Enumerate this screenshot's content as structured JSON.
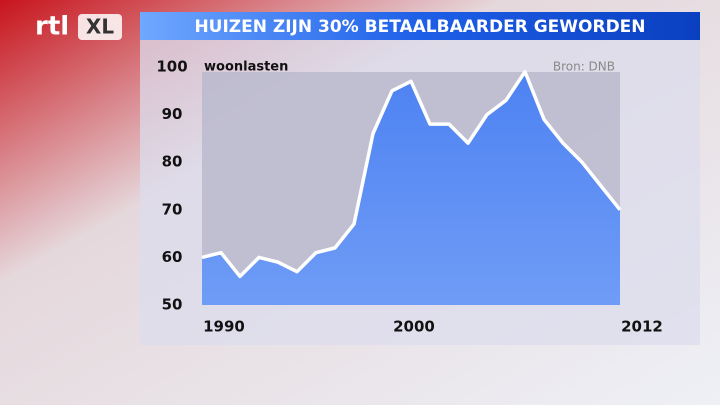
{
  "logo": {
    "left": "rtl",
    "right": "XL"
  },
  "chart_data": {
    "type": "area",
    "title": "HUIZEN ZIJN 30% BETAALBAARDER GEWORDEN",
    "y_label": "woonlasten",
    "source": "Bron: DNB",
    "x": [
      1990,
      1991,
      1992,
      1993,
      1994,
      1995,
      1996,
      1997,
      1998,
      1999,
      2000,
      2001,
      2002,
      2003,
      2004,
      2005,
      2006,
      2007,
      2008,
      2009,
      2010,
      2011,
      2012
    ],
    "values": [
      60,
      61,
      56,
      60,
      59,
      57,
      61,
      62,
      67,
      86,
      95,
      97,
      88,
      88,
      84,
      90,
      93,
      99,
      89,
      84,
      80,
      75,
      70
    ],
    "color": "#4d82f2",
    "line_color": "#ffffff",
    "xlim": [
      1990,
      2012
    ],
    "xticks": [
      1990,
      2000,
      2012
    ],
    "ylim": [
      50,
      100
    ],
    "yticks": [
      50,
      60,
      70,
      80,
      90,
      100
    ]
  }
}
